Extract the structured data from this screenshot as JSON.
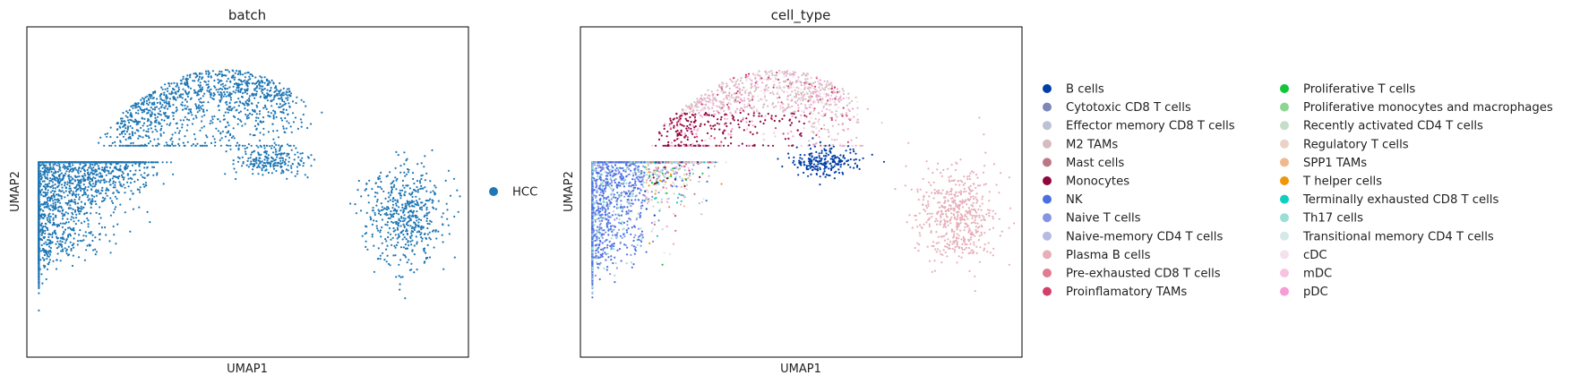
{
  "chart_data": [
    {
      "type": "scatter",
      "title": "batch",
      "xlabel": "UMAP1",
      "ylabel": "UMAP2",
      "grid": false,
      "ticks": false,
      "legend_position": "right",
      "legend": [
        {
          "label": "HCC",
          "color": "#1f77b4"
        }
      ],
      "clusters": [
        {
          "label": "HCC",
          "region": "upper arc",
          "cx": 4.8,
          "cy": 7.6
        },
        {
          "label": "HCC",
          "region": "large left mass",
          "cx": 2.6,
          "cy": 3.0
        },
        {
          "label": "HCC",
          "region": "small middle cluster",
          "cx": 6.1,
          "cy": 5.9
        },
        {
          "label": "HCC",
          "region": "right cluster",
          "cx": 9.4,
          "cy": 4.3
        }
      ]
    },
    {
      "type": "scatter",
      "title": "cell_type",
      "xlabel": "UMAP1",
      "ylabel": "UMAP2",
      "grid": false,
      "ticks": false,
      "legend_position": "right",
      "legend": [
        {
          "label": "B cells",
          "color": "#023fa5"
        },
        {
          "label": "Cytotoxic CD8 T cells",
          "color": "#7d87b9"
        },
        {
          "label": "Effector memory CD8 T cells",
          "color": "#bec1d4"
        },
        {
          "label": "M2 TAMs",
          "color": "#d6bcc0"
        },
        {
          "label": "Mast cells",
          "color": "#bb7784"
        },
        {
          "label": "Monocytes",
          "color": "#8e063b"
        },
        {
          "label": "NK",
          "color": "#4a6fe3"
        },
        {
          "label": "Naive T cells",
          "color": "#8595e1"
        },
        {
          "label": "Naive-memory CD4 T cells",
          "color": "#b5bbe3"
        },
        {
          "label": "Plasma B cells",
          "color": "#e6afb9"
        },
        {
          "label": "Pre-exhausted CD8 T cells",
          "color": "#e07b91"
        },
        {
          "label": "Proinflamatory TAMs",
          "color": "#d33f6a"
        },
        {
          "label": "Proliferative T cells",
          "color": "#11c638"
        },
        {
          "label": "Proliferative monocytes and macrophages",
          "color": "#8dd593"
        },
        {
          "label": "Recently activated CD4 T cells",
          "color": "#c6dec7"
        },
        {
          "label": "Regulatory T cells",
          "color": "#ead3c6"
        },
        {
          "label": "SPP1 TAMs",
          "color": "#f0b98d"
        },
        {
          "label": "T helper cells",
          "color": "#ef9708"
        },
        {
          "label": "Terminally exhausted CD8 T cells",
          "color": "#0fcfc0"
        },
        {
          "label": "Th17 cells",
          "color": "#9cded6"
        },
        {
          "label": "Transitional memory CD4 T cells",
          "color": "#d5eae7"
        },
        {
          "label": "cDC",
          "color": "#f3e1eb"
        },
        {
          "label": "mDC",
          "color": "#f6c4e1"
        },
        {
          "label": "pDC",
          "color": "#f79cd4"
        }
      ],
      "clusters": [
        {
          "label": "M2 TAMs",
          "region": "upper arc",
          "cx": 4.8,
          "cy": 7.9
        },
        {
          "label": "Monocytes",
          "region": "upper arc lower edge",
          "cx": 4.3,
          "cy": 7.0
        },
        {
          "label": "B cells",
          "region": "small middle cluster",
          "cx": 6.1,
          "cy": 5.9
        },
        {
          "label": "Plasma B cells",
          "region": "right cluster",
          "cx": 9.4,
          "cy": 4.3
        },
        {
          "label": "NK",
          "region": "left edge of large mass",
          "cx": 0.9,
          "cy": 3.6
        },
        {
          "label": "Proliferative T cells",
          "region": "lower right of large mass",
          "cx": 5.7,
          "cy": 2.7
        },
        {
          "label": "Terminally exhausted CD8 T cells",
          "region": "lower right of large mass",
          "cx": 5.5,
          "cy": 1.9
        },
        {
          "label": "T helper cells",
          "region": "center of large mass",
          "cx": 4.6,
          "cy": 2.1
        }
      ]
    }
  ]
}
